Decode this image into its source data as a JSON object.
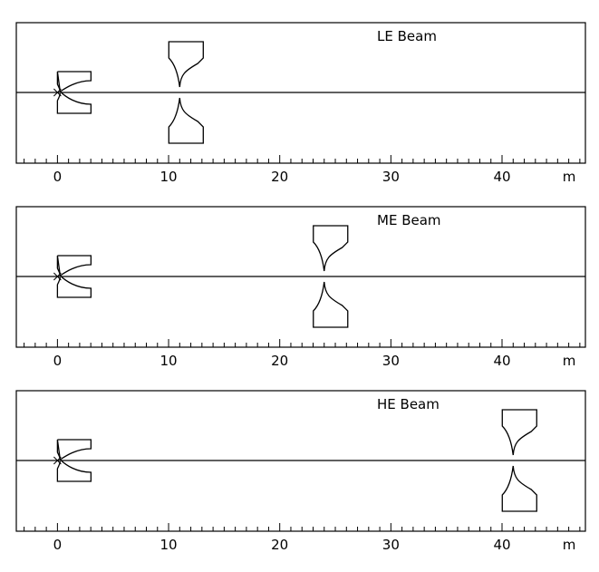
{
  "panels": [
    {
      "label": "LE Beam",
      "horn1_z": 0,
      "horn2_z": 11
    },
    {
      "label": "ME Beam",
      "horn1_z": 0,
      "horn2_z": 24
    },
    {
      "label": "HE Beam",
      "horn1_z": 0,
      "horn2_z": 41
    }
  ],
  "axis": {
    "unit": "m",
    "min": -3.7,
    "max": 47.5,
    "minor_tick_step": 1,
    "major_ticks": [
      0,
      10,
      20,
      30,
      40
    ],
    "tick_labels": [
      "0",
      "10",
      "20",
      "30",
      "40"
    ]
  },
  "colors": {
    "line": "#000000",
    "background": "#ffffff"
  }
}
